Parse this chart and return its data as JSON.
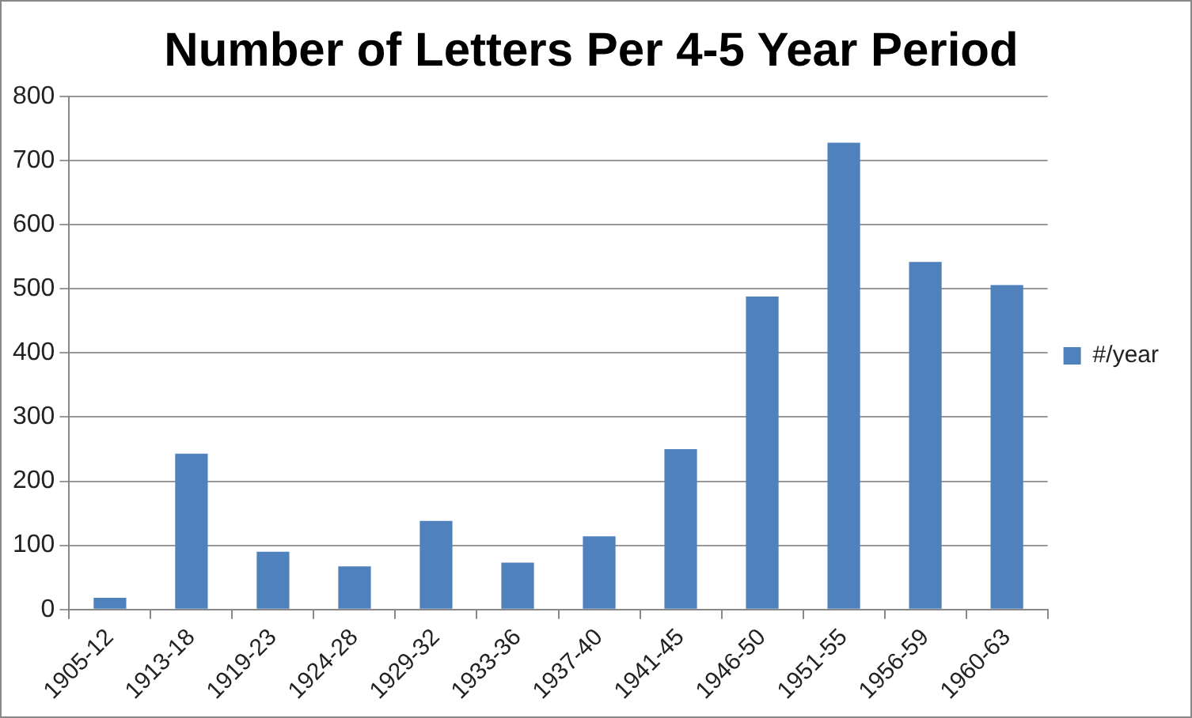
{
  "chart_data": {
    "type": "bar",
    "title": "Number of Letters Per 4-5 Year Period",
    "categories": [
      "1905-12",
      "1913-18",
      "1919-23",
      "1924-28",
      "1929-32",
      "1933-36",
      "1937-40",
      "1941-45",
      "1946-50",
      "1951-55",
      "1956-59",
      "1960-63"
    ],
    "series": [
      {
        "name": "#/year",
        "color": "#4f81bd",
        "values": [
          18,
          243,
          90,
          67,
          138,
          73,
          114,
          250,
          488,
          728,
          542,
          506
        ]
      }
    ],
    "ylim": [
      0,
      800
    ],
    "yticks": [
      0,
      100,
      200,
      300,
      400,
      500,
      600,
      700,
      800
    ],
    "grid": "y",
    "legend": "right"
  }
}
